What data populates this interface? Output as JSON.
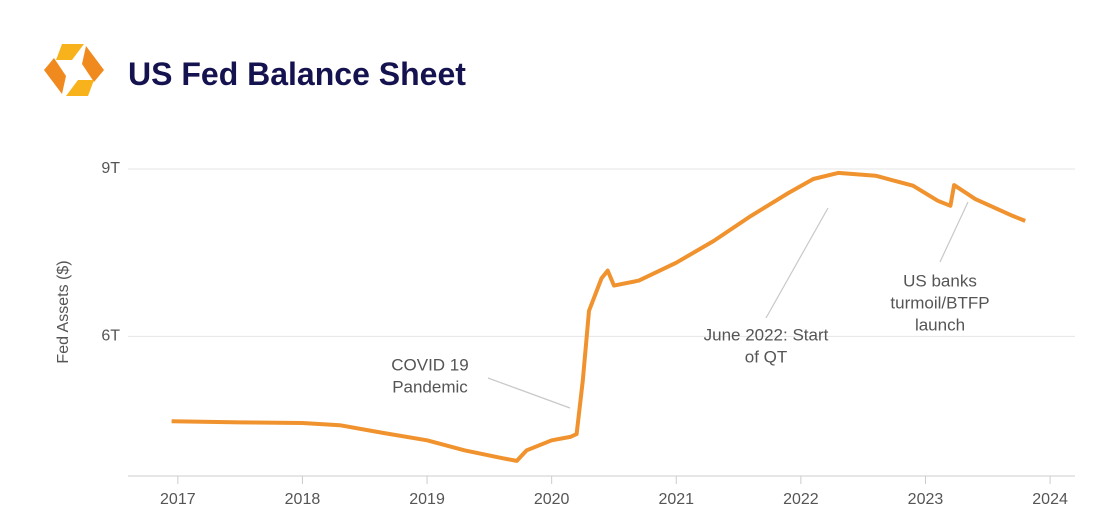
{
  "chart_data": {
    "type": "line",
    "title": "US Fed Balance Sheet",
    "y_label": "Fed Assets ($)",
    "x": [
      2016.95,
      2017.5,
      2018.0,
      2018.3,
      2018.6,
      2019.0,
      2019.3,
      2019.6,
      2019.72,
      2019.8,
      2020.0,
      2020.15,
      2020.2,
      2020.25,
      2020.3,
      2020.4,
      2020.45,
      2020.5,
      2020.7,
      2021.0,
      2021.3,
      2021.6,
      2021.9,
      2022.1,
      2022.3,
      2022.6,
      2022.9,
      2023.1,
      2023.2,
      2023.23,
      2023.4,
      2023.7,
      2023.8
    ],
    "series": [
      {
        "color": "#f0922e",
        "values": [
          4480000000000.0,
          4460000000000.0,
          4450000000000.0,
          4410000000000.0,
          4290000000000.0,
          4140000000000.0,
          3960000000000.0,
          3820000000000.0,
          3770000000000.0,
          3960000000000.0,
          4140000000000.0,
          4200000000000.0,
          4250000000000.0,
          5210000000000.0,
          6460000000000.0,
          7040000000000.0,
          7180000000000.0,
          6910000000000.0,
          7000000000000.0,
          7320000000000.0,
          7710000000000.0,
          8160000000000.0,
          8570000000000.0,
          8820000000000.0,
          8930000000000.0,
          8880000000000.0,
          8700000000000.0,
          8430000000000.0,
          8340000000000.0,
          8710000000000.0,
          8460000000000.0,
          8160000000000.0,
          8070000000000.0
        ]
      }
    ],
    "xlim": [
      2016.6,
      2024.2
    ],
    "xticks": [
      2017,
      2018,
      2019,
      2020,
      2021,
      2022,
      2023,
      2024
    ],
    "ylim": [
      3500000000000.0,
      9250000000000.0
    ],
    "yticks": [
      {
        "value": 6000000000000.0,
        "label": "6T"
      },
      {
        "value": 9000000000000.0,
        "label": "9T"
      }
    ],
    "grid": true,
    "annotations": [
      {
        "text": [
          "COVID 19",
          "Pandemic"
        ]
      },
      {
        "text": [
          "June 2022: Start",
          "of QT"
        ]
      },
      {
        "text": [
          "US banks",
          "turmoil/BTFP",
          "launch"
        ]
      }
    ]
  }
}
